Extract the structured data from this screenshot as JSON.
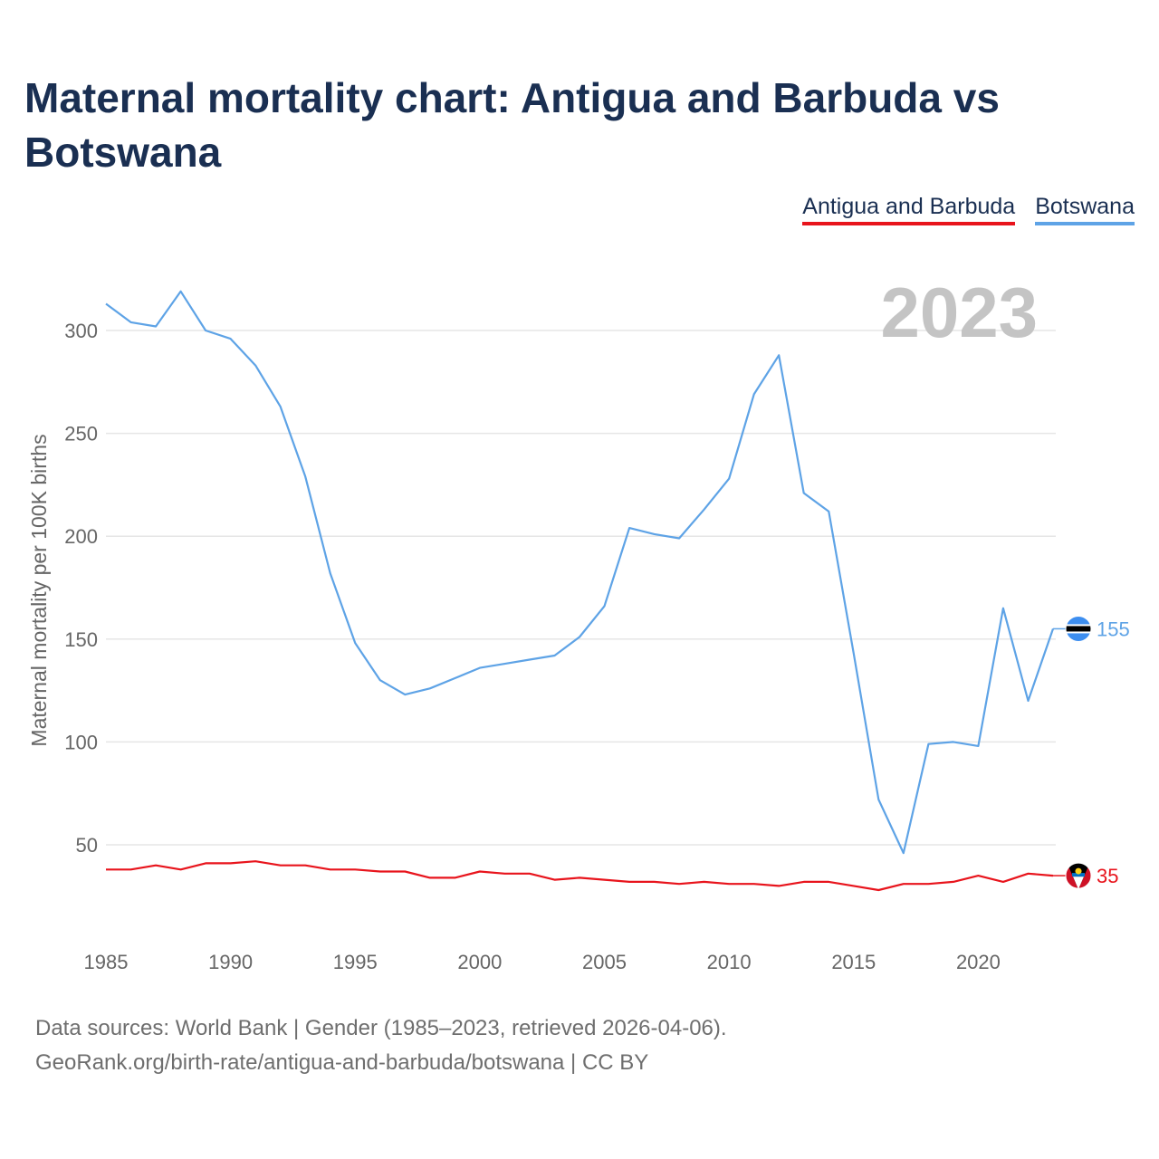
{
  "title": "Maternal mortality chart: Antigua and Barbuda vs Botswana",
  "legend": [
    {
      "label": "Antigua and Barbuda",
      "color": "#e8141c"
    },
    {
      "label": "Botswana",
      "color": "#5ea3e6"
    }
  ],
  "footer": {
    "line1": "Data sources: World Bank | Gender (1985–2023, retrieved 2026-04-06).",
    "line2": "GeoRank.org/birth-rate/antigua-and-barbuda/botswana | CC BY"
  },
  "chart_data": {
    "type": "line",
    "title": "Maternal mortality chart: Antigua and Barbuda vs Botswana",
    "year_label": "2023",
    "xlabel": "",
    "ylabel": "Maternal mortality per 100K births",
    "xlim": [
      1985,
      2023
    ],
    "ylim": [
      20,
      325
    ],
    "grid": true,
    "x_ticks": [
      1985,
      1990,
      1995,
      2000,
      2005,
      2010,
      2015,
      2020
    ],
    "y_ticks": [
      50,
      100,
      150,
      200,
      250,
      300
    ],
    "x": [
      1985,
      1986,
      1987,
      1988,
      1989,
      1990,
      1991,
      1992,
      1993,
      1994,
      1995,
      1996,
      1997,
      1998,
      1999,
      2000,
      2001,
      2002,
      2003,
      2004,
      2005,
      2006,
      2007,
      2008,
      2009,
      2010,
      2011,
      2012,
      2013,
      2014,
      2015,
      2016,
      2017,
      2018,
      2019,
      2020,
      2021,
      2022,
      2023
    ],
    "series": [
      {
        "name": "Antigua and Barbuda",
        "color": "#e8141c",
        "end_label": "35",
        "values": [
          38,
          38,
          40,
          38,
          41,
          41,
          42,
          40,
          40,
          38,
          38,
          37,
          37,
          34,
          34,
          37,
          36,
          36,
          33,
          34,
          33,
          32,
          32,
          31,
          32,
          31,
          31,
          30,
          32,
          32,
          30,
          28,
          31,
          31,
          32,
          35,
          32,
          36,
          35
        ]
      },
      {
        "name": "Botswana",
        "color": "#5ea3e6",
        "end_label": "155",
        "values": [
          313,
          304,
          302,
          319,
          300,
          296,
          283,
          263,
          229,
          182,
          148,
          130,
          123,
          126,
          131,
          136,
          138,
          140,
          142,
          151,
          166,
          204,
          201,
          199,
          213,
          228,
          269,
          288,
          221,
          212,
          143,
          72,
          46,
          99,
          100,
          98,
          165,
          120,
          155
        ]
      }
    ]
  }
}
